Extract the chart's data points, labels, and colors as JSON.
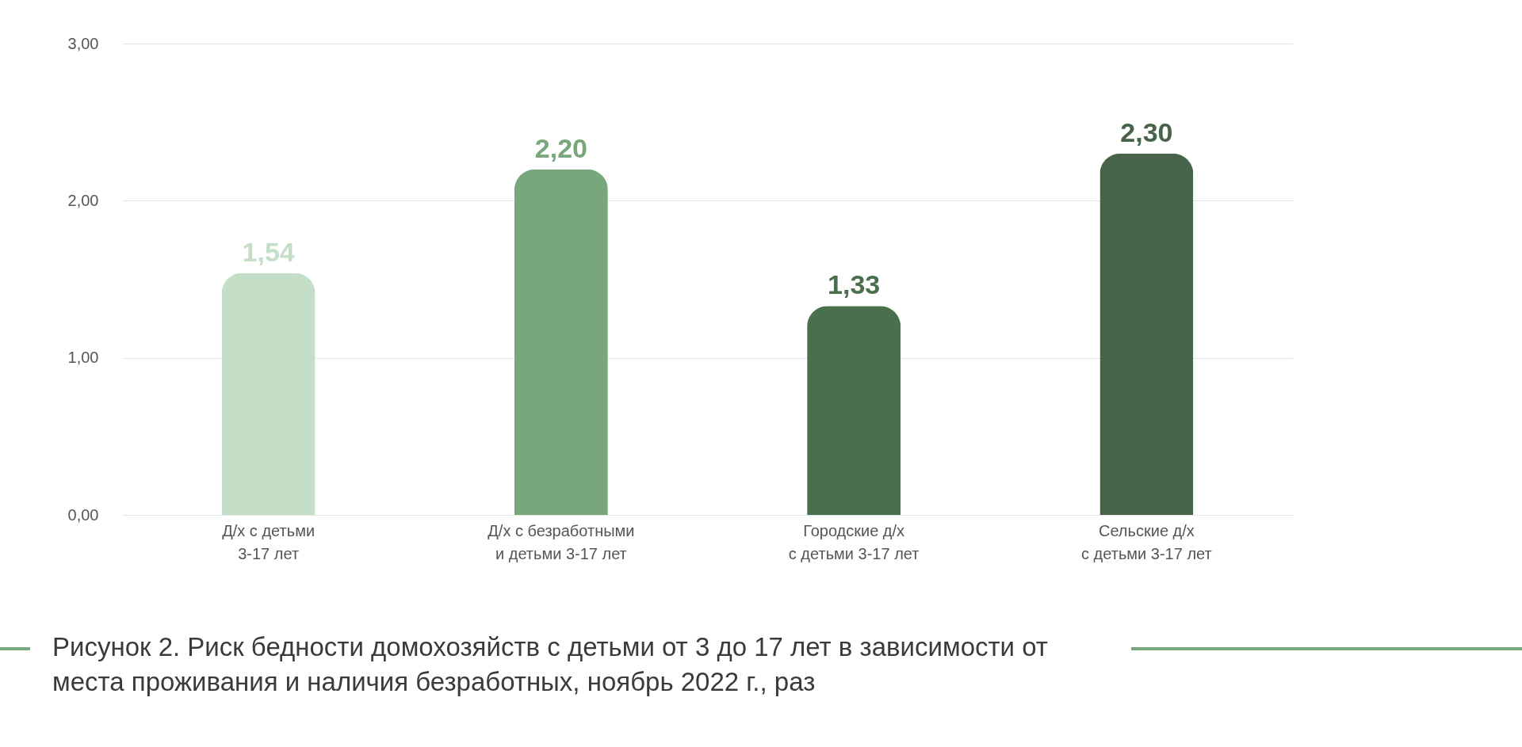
{
  "chart_data": {
    "type": "bar",
    "title": "Рисунок 2. Риск бедности домохозяйств с детьми от 3 до 17 лет в зависимости от места проживания и наличия безработных, ноябрь 2022 г., раз",
    "categories": [
      "Д/х с детьми\n3-17 лет",
      "Д/х с безработными\nи детьми 3-17 лет",
      "Городские д/х\nс детьми 3-17 лет",
      "Сельские д/х\nс детьми 3-17 лет"
    ],
    "values": [
      1.54,
      2.2,
      1.33,
      2.3
    ],
    "value_labels": [
      "1,54",
      "2,20",
      "1,33",
      "2,30"
    ],
    "colors": [
      "#c5dec8",
      "#78a77b",
      "#4a6f4c",
      "#47634a"
    ],
    "ylim": [
      0,
      3
    ],
    "yticks": [
      {
        "value": 0,
        "label": "0,00"
      },
      {
        "value": 1,
        "label": "1,00"
      },
      {
        "value": 2,
        "label": "2,00"
      },
      {
        "value": 3,
        "label": "3,00"
      }
    ],
    "grid": true,
    "legend": false
  }
}
